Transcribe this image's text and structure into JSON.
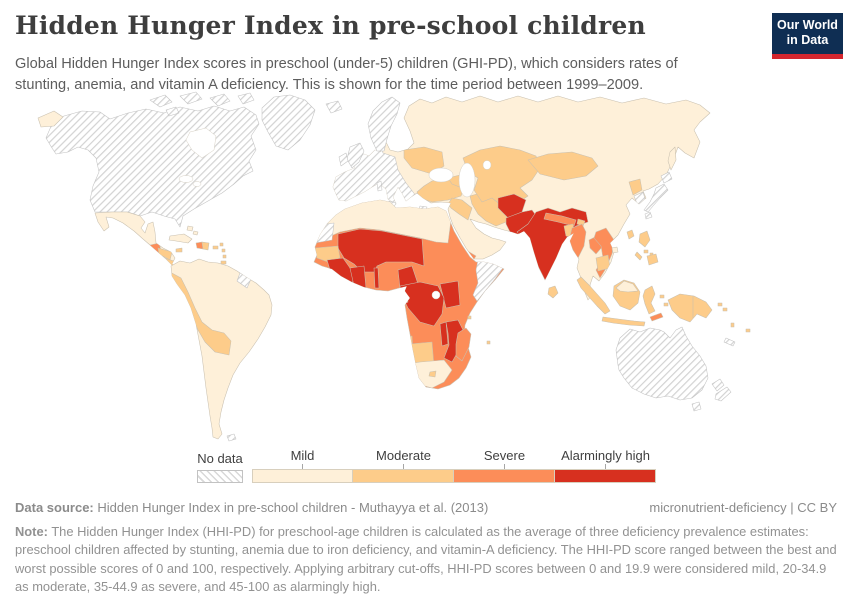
{
  "header": {
    "title": "Hidden Hunger Index in pre-school children",
    "subtitle": "Global Hidden Hunger Index scores in preschool (under-5) children (GHI-PD), which considers rates of stunting, anemia, and vitamin A deficiency. This is shown for the time period between 1999–2009.",
    "logo": {
      "line1": "Our World",
      "line2": "in Data",
      "bg_color": "#0f2e53",
      "accent_color": "#d5262e"
    }
  },
  "legend": {
    "no_data_label": "No data",
    "categories": [
      {
        "label": "Mild",
        "color": "#fef0d9"
      },
      {
        "label": "Moderate",
        "color": "#fdcc8a"
      },
      {
        "label": "Severe",
        "color": "#fc8d59"
      },
      {
        "label": "Alarmingly high",
        "color": "#d7301f"
      }
    ]
  },
  "map": {
    "class_colors": {
      "mild": "#fef0d9",
      "moderate": "#fdcc8a",
      "severe": "#fc8d59",
      "high": "#d7301f",
      "border": "#c9c0b0",
      "nodata_stripe": "#d2d2d2",
      "sea": "#ffffff"
    }
  },
  "chart_data": {
    "type": "choropleth",
    "title": "Hidden Hunger Index in pre-school children",
    "metric": "Hidden Hunger Index in preschool children (HHI-PD), categorical",
    "time_period": "1999–2009",
    "classes": [
      "Mild (0-19.9)",
      "Moderate (20-34.9)",
      "Severe (35-44.9)",
      "Alarmingly high (45-100)",
      "No data"
    ],
    "legend_position": "bottom",
    "countries_by_class": {
      "mild": [
        "Russia",
        "China",
        "Mexico",
        "Cuba",
        "Colombia",
        "Venezuela",
        "Guyana",
        "Suriname",
        "Brazil",
        "Paraguay",
        "Uruguay",
        "Argentina",
        "Chile",
        "Morocco",
        "Algeria",
        "Tunisia",
        "Libya",
        "Egypt",
        "Saudi Arabia",
        "Oman",
        "South Africa",
        "Poland",
        "Belarus",
        "Romania",
        "Finland",
        "Baltic states",
        "Thailand",
        "Malaysia"
      ],
      "moderate": [
        "Peru",
        "Ecuador",
        "Bolivia",
        "Honduras",
        "Nicaragua",
        "Jamaica",
        "Dominican Republic",
        "Ukraine",
        "Turkey",
        "Syria",
        "Iraq",
        "Iran",
        "Kazakhstan",
        "Uzbekistan",
        "Turkmenistan",
        "Kyrgyzstan",
        "Tajikistan",
        "Mongolia",
        "North Korea",
        "Bhutan",
        "Bangladesh",
        "Cambodia",
        "Indonesia",
        "Philippines",
        "Papua New Guinea",
        "Sri Lanka",
        "Senegal",
        "Gabon",
        "Namibia",
        "Botswana",
        "Lesotho"
      ],
      "severe": [
        "Guatemala",
        "Haiti",
        "Mauritania",
        "Sudan",
        "Eritrea",
        "Ethiopia",
        "Ghana",
        "Benin",
        "Nigeria",
        "Central African Republic",
        "Uganda",
        "Tanzania",
        "Angola",
        "Zambia",
        "Zimbabwe",
        "Madagascar",
        "Yemen",
        "Nepal",
        "Myanmar",
        "Laos",
        "Vietnam",
        "Timor-Leste"
      ],
      "alarmingly_high": [
        "Mali",
        "Burkina Faso",
        "Niger",
        "Chad",
        "Guinea",
        "Sierra Leone",
        "Liberia",
        "Côte d'Ivoire",
        "Togo",
        "Cameroon",
        "Congo",
        "Democratic Republic of Congo",
        "Kenya",
        "Malawi",
        "Mozambique",
        "Afghanistan",
        "Pakistan",
        "India"
      ],
      "no_data": [
        "United States",
        "Canada",
        "Greenland",
        "Iceland",
        "United Kingdom",
        "Ireland",
        "France",
        "Spain",
        "Portugal",
        "Germany",
        "Italy",
        "Norway",
        "Sweden",
        "Denmark",
        "Greece",
        "Japan",
        "South Korea",
        "Australia",
        "New Zealand",
        "Somalia",
        "Western Sahara",
        "French Guiana",
        "New Caledonia"
      ]
    }
  },
  "footer": {
    "data_source_label": "Data source:",
    "data_source_text": "Hidden Hunger Index in pre-school children - Muthayya et al. (2013)",
    "attribution": "micronutrient-deficiency | CC BY",
    "note_label": "Note:",
    "note_text": "The Hidden Hunger Index (HHI-PD) for preschool-age children is calculated as the average of three deficiency prevalence estimates: preschool children affected by stunting, anemia due to iron deficiency, and vitamin-A deficiency. The HHI-PD score ranged between the best and worst possible scores of 0 and 100, respectively. Applying arbitrary cut-offs, HHI-PD scores between 0 and 19.9 were considered mild, 20-34.9 as moderate, 35-44.9 as severe, and 45-100 as alarmingly high."
  }
}
